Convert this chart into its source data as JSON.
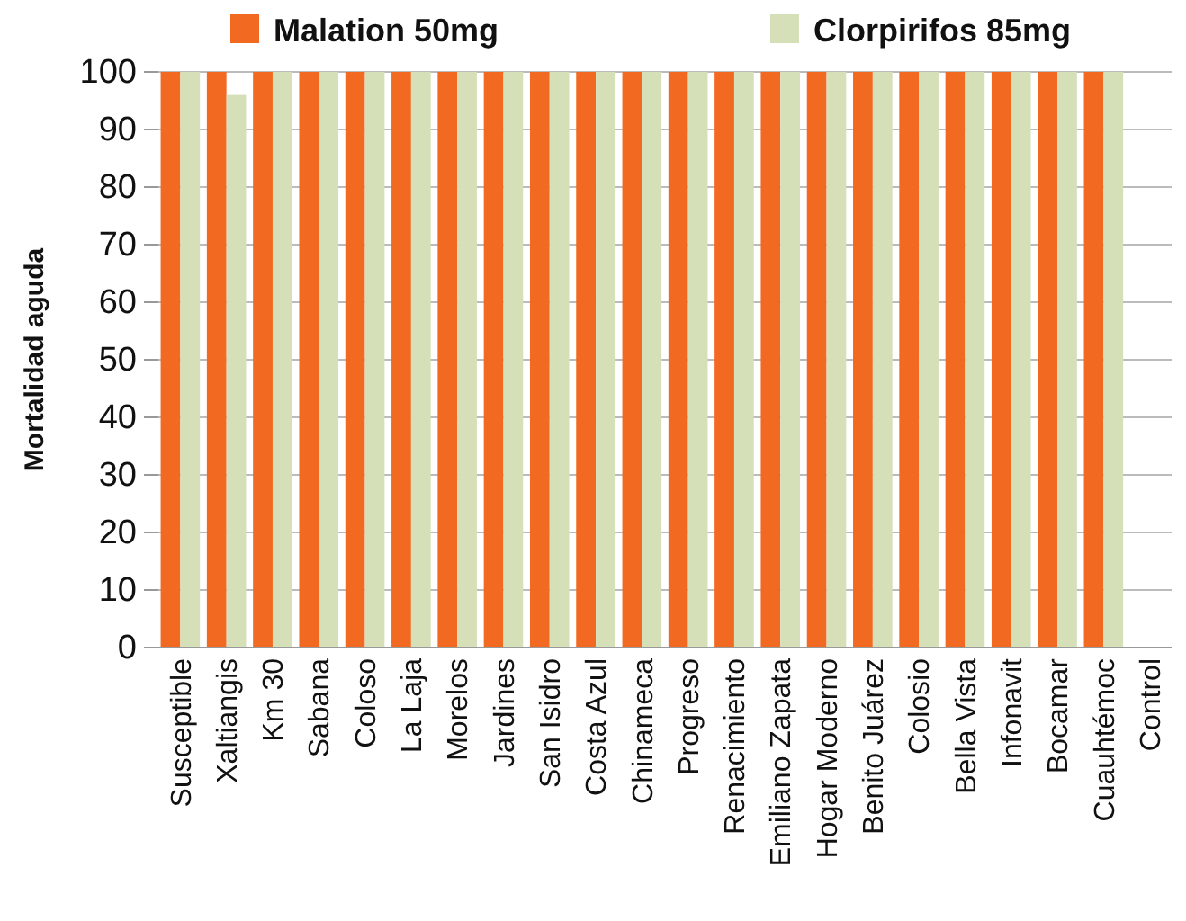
{
  "chart_data": {
    "type": "bar",
    "ylabel": "Mortalidad aguda",
    "categories": [
      "Susceptible",
      "Xaltiangis",
      "Km 30",
      "Sabana",
      "Coloso",
      "La Laja",
      "Morelos",
      "Jardines",
      "San Isidro",
      "Costa Azul",
      "Chinameca",
      "Progreso",
      "Renacimiento",
      "Emiliano Zapata",
      "Hogar Moderno",
      "Benito Juárez",
      "Colosio",
      "Bella Vista",
      "Infonavit",
      "Bocamar",
      "Cuauhtémoc",
      "Control"
    ],
    "series": [
      {
        "name": "Malation 50mg",
        "color": "#f26a21",
        "values": [
          100,
          100,
          100,
          100,
          100,
          100,
          100,
          100,
          100,
          100,
          100,
          100,
          100,
          100,
          100,
          100,
          100,
          100,
          100,
          100,
          100,
          0
        ]
      },
      {
        "name": "Clorpirifos 85mg",
        "color": "#d6e0b8",
        "values": [
          100,
          96,
          100,
          100,
          100,
          100,
          100,
          100,
          100,
          100,
          100,
          100,
          100,
          100,
          100,
          100,
          100,
          100,
          100,
          100,
          100,
          0
        ]
      }
    ],
    "ylim": [
      0,
      100
    ],
    "yticks": [
      0,
      10,
      20,
      30,
      40,
      50,
      60,
      70,
      80,
      90,
      100
    ],
    "grid": "y",
    "legend": "top"
  }
}
